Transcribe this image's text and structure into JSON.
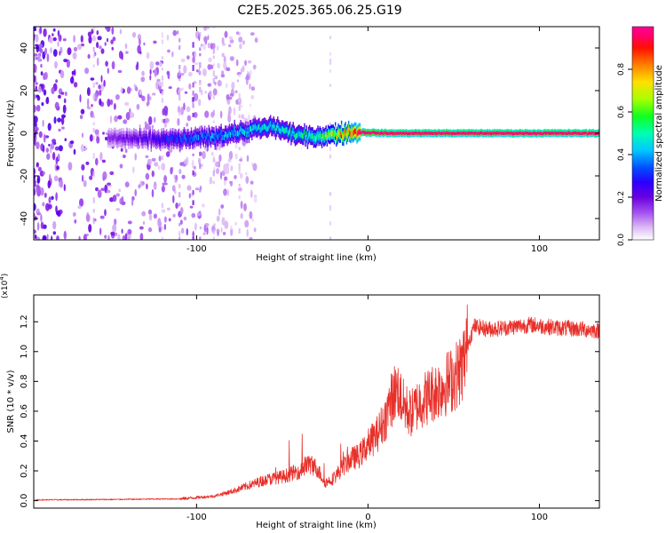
{
  "title": "C2E5.2025.365.06.25.G19",
  "colors": {
    "signal_line": "#e8302a",
    "frame": "#000000",
    "background": "#ffffff"
  },
  "chart_data": [
    {
      "type": "heatmap",
      "name": "spectrogram",
      "xlabel": "Height of straight line (km)",
      "ylabel": "Frequency (Hz)",
      "xlim": [
        -195,
        135
      ],
      "ylim": [
        -50,
        50
      ],
      "xticks": [
        -100,
        0,
        100
      ],
      "yticks": [
        -40,
        -20,
        0,
        20,
        40
      ],
      "grid": false,
      "colorbar": {
        "label": "Normalized spectral amplitude",
        "range": [
          0,
          1
        ],
        "ticks": [
          "0.0",
          "0.2",
          "0.4",
          "0.6",
          "0.8"
        ],
        "colormap": [
          "#ffffff",
          "#dcb8f5",
          "#a24ef0",
          "#6a00e0",
          "#2a00ff",
          "#0050ff",
          "#00c8ff",
          "#00ffb0",
          "#10ff20",
          "#a8ff00",
          "#ffe000",
          "#ff8000",
          "#ff1000",
          "#ff0070",
          "#ff0090"
        ]
      },
      "signal_center_hz": [
        [
          -150,
          -2
        ],
        [
          -130,
          -3
        ],
        [
          -110,
          -3
        ],
        [
          -95,
          -2
        ],
        [
          -80,
          0
        ],
        [
          -65,
          2
        ],
        [
          -55,
          3
        ],
        [
          -45,
          0
        ],
        [
          -35,
          -2
        ],
        [
          -25,
          -1
        ],
        [
          -15,
          0
        ],
        [
          -5,
          0.5
        ],
        [
          10,
          0
        ],
        [
          60,
          0
        ],
        [
          135,
          0
        ]
      ],
      "signal_amplitude": [
        [
          -150,
          0.15
        ],
        [
          -130,
          0.22
        ],
        [
          -110,
          0.3
        ],
        [
          -90,
          0.35
        ],
        [
          -70,
          0.4
        ],
        [
          -55,
          0.42
        ],
        [
          -40,
          0.45
        ],
        [
          -25,
          0.55
        ],
        [
          -15,
          0.75
        ],
        [
          -5,
          0.95
        ],
        [
          135,
          0.95
        ]
      ]
    },
    {
      "type": "line",
      "name": "snr",
      "xlabel": "Height of straight line (km)",
      "ylabel": "SNR (10 * v/v)",
      "multiplier_label": "(x10",
      "multiplier_exponent": "4",
      "multiplier_close": ")",
      "xlim": [
        -195,
        135
      ],
      "ylim": [
        -0.05,
        1.38
      ],
      "xticks": [
        -100,
        0,
        100
      ],
      "yticks": [
        "0.0",
        "0.2",
        "0.4",
        "0.6",
        "0.8",
        "1.0",
        "1.2"
      ],
      "grid": false,
      "series": [
        {
          "name": "SNR",
          "envelope_x": [
            -195,
            -150,
            -110,
            -90,
            -80,
            -70,
            -60,
            -50,
            -40,
            -35,
            -30,
            -25,
            -20,
            -15,
            -10,
            -5,
            0,
            5,
            10,
            15,
            18,
            20,
            25,
            30,
            40,
            50,
            55,
            58,
            62,
            70,
            80,
            95,
            110,
            125,
            135
          ],
          "envelope_y": [
            0.005,
            0.008,
            0.012,
            0.03,
            0.06,
            0.1,
            0.14,
            0.16,
            0.2,
            0.25,
            0.22,
            0.12,
            0.15,
            0.22,
            0.28,
            0.3,
            0.38,
            0.44,
            0.55,
            0.72,
            0.75,
            0.65,
            0.58,
            0.66,
            0.74,
            0.82,
            0.9,
            1.05,
            1.17,
            1.15,
            1.16,
            1.18,
            1.16,
            1.15,
            1.14
          ]
        }
      ]
    }
  ]
}
